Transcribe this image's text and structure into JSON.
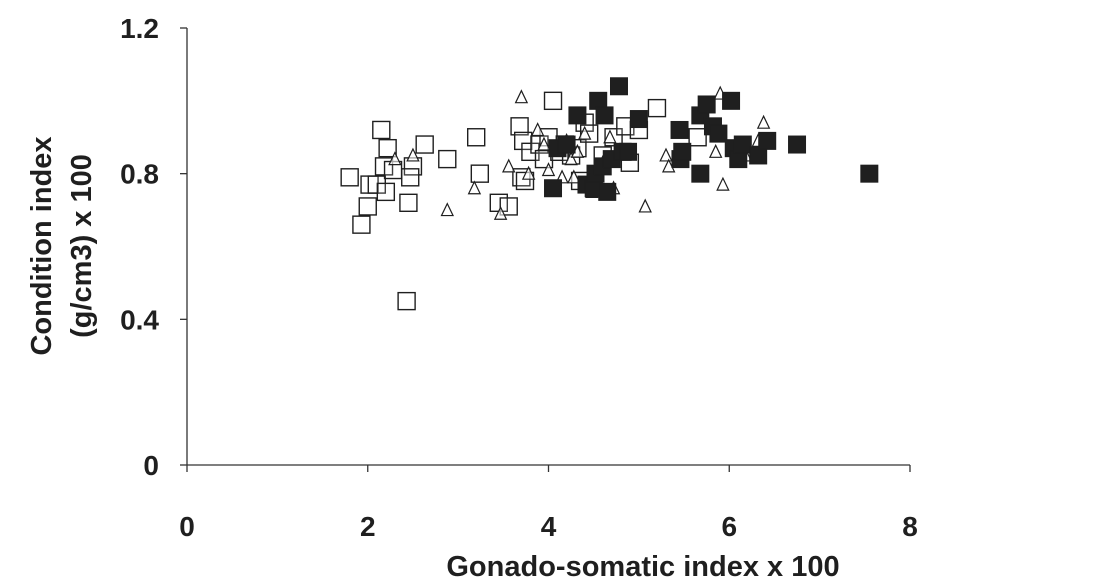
{
  "chart_data": {
    "type": "scatter",
    "title": "",
    "xlabel": "Gonado-somatic index x 100",
    "ylabel": [
      "Condition index",
      "(g/cm3) x 100"
    ],
    "xlim": [
      0,
      8
    ],
    "ylim": [
      0,
      1.2
    ],
    "x_ticks": [
      0,
      2,
      4,
      6,
      8
    ],
    "y_ticks": [
      0,
      0.4,
      0.8,
      1.2
    ],
    "x_tick_labels": [
      "0",
      "2",
      "4",
      "6",
      "8"
    ],
    "y_tick_labels": [
      "0",
      "0.4",
      "0.8",
      "1.2"
    ],
    "grid": false,
    "legend": "none",
    "series": [
      {
        "marker": "open-square",
        "color": "#1f1f1f",
        "points": [
          [
            1.8,
            0.79
          ],
          [
            1.93,
            0.66
          ],
          [
            2.0,
            0.71
          ],
          [
            2.02,
            0.77
          ],
          [
            2.1,
            0.77
          ],
          [
            2.15,
            0.92
          ],
          [
            2.18,
            0.82
          ],
          [
            2.2,
            0.75
          ],
          [
            2.22,
            0.87
          ],
          [
            2.28,
            0.81
          ],
          [
            2.45,
            0.72
          ],
          [
            2.5,
            0.82
          ],
          [
            2.47,
            0.79
          ],
          [
            2.43,
            0.45
          ],
          [
            2.63,
            0.88
          ],
          [
            2.88,
            0.84
          ],
          [
            3.2,
            0.9
          ],
          [
            3.24,
            0.8
          ],
          [
            3.45,
            0.72
          ],
          [
            3.56,
            0.71
          ],
          [
            3.68,
            0.93
          ],
          [
            3.72,
            0.89
          ],
          [
            3.7,
            0.79
          ],
          [
            3.74,
            0.78
          ],
          [
            3.8,
            0.86
          ],
          [
            3.9,
            0.88
          ],
          [
            3.95,
            0.84
          ],
          [
            4.0,
            0.9
          ],
          [
            4.05,
            1.0
          ],
          [
            4.12,
            0.86
          ],
          [
            4.18,
            0.88
          ],
          [
            4.25,
            0.85
          ],
          [
            4.32,
            0.87
          ],
          [
            4.35,
            0.78
          ],
          [
            4.4,
            0.94
          ],
          [
            4.45,
            0.91
          ],
          [
            4.6,
            0.85
          ],
          [
            4.72,
            0.9
          ],
          [
            4.85,
            0.93
          ],
          [
            4.9,
            0.83
          ],
          [
            5.0,
            0.92
          ],
          [
            5.2,
            0.98
          ],
          [
            5.65,
            0.9
          ]
        ]
      },
      {
        "marker": "open-triangle",
        "color": "#1f1f1f",
        "points": [
          [
            2.3,
            0.84
          ],
          [
            2.5,
            0.85
          ],
          [
            2.88,
            0.7
          ],
          [
            3.18,
            0.76
          ],
          [
            3.47,
            0.69
          ],
          [
            3.56,
            0.82
          ],
          [
            3.7,
            1.01
          ],
          [
            3.78,
            0.8
          ],
          [
            3.88,
            0.92
          ],
          [
            3.95,
            0.88
          ],
          [
            4.0,
            0.81
          ],
          [
            4.08,
            0.87
          ],
          [
            4.15,
            0.79
          ],
          [
            4.2,
            0.89
          ],
          [
            4.25,
            0.84
          ],
          [
            4.28,
            0.79
          ],
          [
            4.32,
            0.86
          ],
          [
            4.4,
            0.91
          ],
          [
            4.48,
            0.75
          ],
          [
            4.55,
            0.78
          ],
          [
            4.6,
            0.83
          ],
          [
            4.68,
            0.9
          ],
          [
            4.72,
            0.76
          ],
          [
            4.78,
            0.86
          ],
          [
            5.07,
            0.71
          ],
          [
            5.3,
            0.85
          ],
          [
            5.33,
            0.82
          ],
          [
            5.85,
            0.86
          ],
          [
            5.9,
            1.02
          ],
          [
            5.93,
            0.77
          ],
          [
            6.18,
            0.85
          ],
          [
            6.32,
            0.89
          ],
          [
            6.38,
            0.94
          ]
        ]
      },
      {
        "marker": "filled-square",
        "color": "#1f1f1f",
        "points": [
          [
            4.05,
            0.76
          ],
          [
            4.1,
            0.87
          ],
          [
            4.2,
            0.88
          ],
          [
            4.32,
            0.96
          ],
          [
            4.42,
            0.77
          ],
          [
            4.5,
            0.76
          ],
          [
            4.52,
            0.8
          ],
          [
            4.55,
            1.0
          ],
          [
            4.6,
            0.82
          ],
          [
            4.62,
            0.96
          ],
          [
            4.65,
            0.75
          ],
          [
            4.7,
            0.84
          ],
          [
            4.78,
            1.04
          ],
          [
            4.82,
            0.86
          ],
          [
            4.88,
            0.86
          ],
          [
            5.0,
            0.95
          ],
          [
            5.45,
            0.92
          ],
          [
            5.46,
            0.84
          ],
          [
            5.48,
            0.86
          ],
          [
            5.68,
            0.8
          ],
          [
            5.68,
            0.96
          ],
          [
            5.75,
            0.99
          ],
          [
            5.82,
            0.93
          ],
          [
            5.88,
            0.91
          ],
          [
            6.02,
            1.0
          ],
          [
            6.05,
            0.87
          ],
          [
            6.1,
            0.84
          ],
          [
            6.15,
            0.88
          ],
          [
            6.32,
            0.85
          ],
          [
            6.42,
            0.89
          ],
          [
            6.75,
            0.88
          ],
          [
            7.55,
            0.8
          ]
        ]
      }
    ]
  }
}
